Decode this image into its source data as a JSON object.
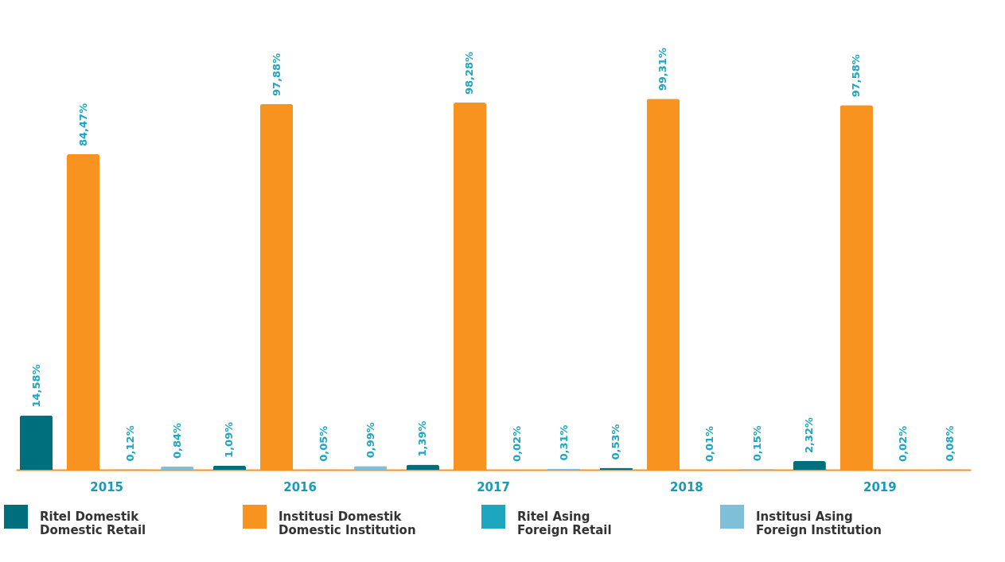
{
  "chart_data": {
    "type": "bar",
    "categories": [
      "2015",
      "2016",
      "2017",
      "2018",
      "2019"
    ],
    "series": [
      {
        "name": "Ritel Domestik\nDomestic Retail",
        "color": "#006f7d",
        "values": [
          14.58,
          1.09,
          1.39,
          0.53,
          2.32
        ],
        "value_labels": [
          "14,58%",
          "1,09%",
          "1,39%",
          "0,53%",
          "2,32%"
        ]
      },
      {
        "name": "Institusi Domestik\nDomestic Institution",
        "color": "#f7931e",
        "values": [
          84.47,
          97.88,
          98.28,
          99.31,
          97.58
        ],
        "value_labels": [
          "84,47%",
          "97,88%",
          "98,28%",
          "99,31%",
          "97,58%"
        ]
      },
      {
        "name": "Ritel Asing\nForeign Retail",
        "color": "#1ea5c0",
        "values": [
          0.12,
          0.05,
          0.02,
          0.01,
          0.02
        ],
        "value_labels": [
          "0,12%",
          "0,05%",
          "0,02%",
          "0,01%",
          "0,02%"
        ]
      },
      {
        "name": "Institusi Asing\nForeign Institution",
        "color": "#7fbfd8",
        "values": [
          0.84,
          0.99,
          0.31,
          0.15,
          0.08
        ],
        "value_labels": [
          "0,84%",
          "0,99%",
          "0,31%",
          "0,15%",
          "0,08%"
        ]
      }
    ],
    "legend": "bottom",
    "grid": false
  }
}
